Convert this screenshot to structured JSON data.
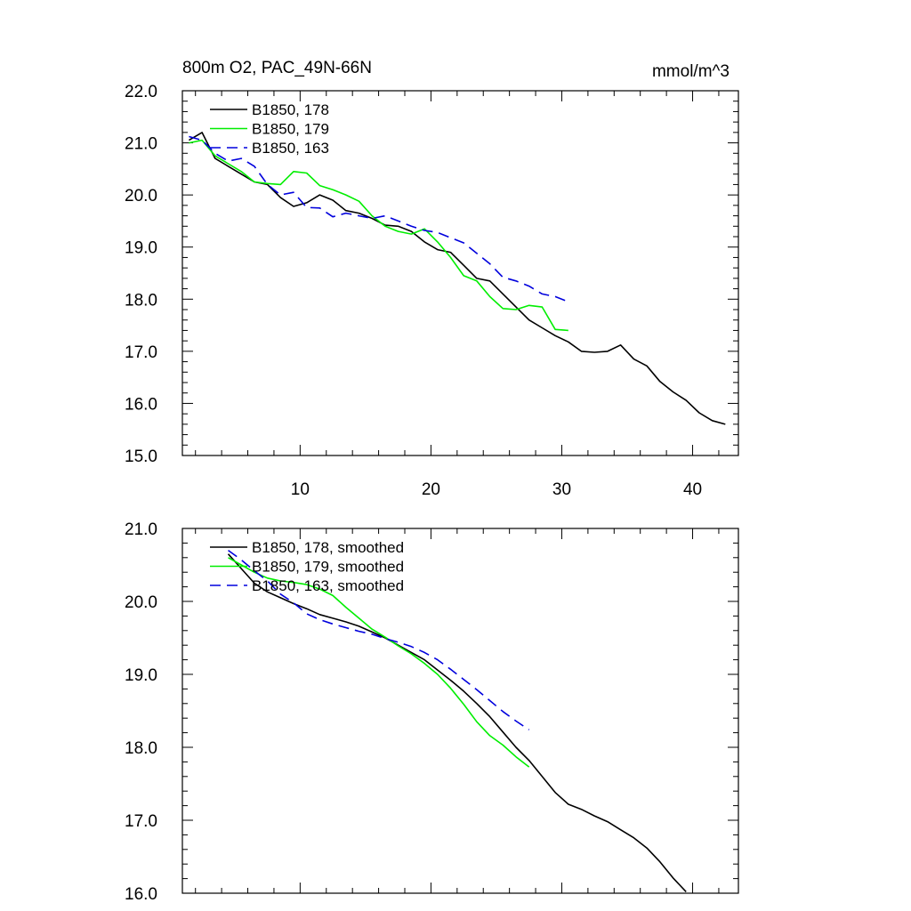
{
  "chart_data": [
    {
      "type": "line",
      "title": "800m O2, PAC_49N-66N",
      "units": "mmol/m^3",
      "xlabel": "",
      "ylabel": "",
      "xlim": [
        1,
        43.5
      ],
      "ylim": [
        15.0,
        22.0
      ],
      "xticks": [
        10,
        20,
        30,
        40
      ],
      "yticks": [
        15.0,
        16.0,
        17.0,
        18.0,
        19.0,
        20.0,
        21.0,
        22.0
      ],
      "ytick_labels": [
        "15.0",
        "16.0",
        "17.0",
        "18.0",
        "19.0",
        "20.0",
        "21.0",
        "22.0"
      ],
      "grid": false,
      "legend": "top-left",
      "series": [
        {
          "name": "B1850, 178",
          "color": "#000000",
          "dash": "solid",
          "x": [
            1.5,
            2.5,
            3.5,
            4.5,
            5.5,
            6.5,
            7.5,
            8.5,
            9.5,
            10.5,
            11.5,
            12.5,
            13.5,
            14.5,
            15.5,
            16.5,
            17.5,
            18.5,
            19.5,
            20.5,
            21.5,
            22.5,
            23.5,
            24.5,
            25.5,
            26.5,
            27.5,
            28.5,
            29.5,
            30.5,
            31.5,
            32.5,
            33.5,
            34.5,
            35.5,
            36.5,
            37.5,
            38.5,
            39.5,
            40.5,
            41.5,
            42.5
          ],
          "y": [
            21.05,
            21.2,
            20.7,
            20.55,
            20.4,
            20.25,
            20.2,
            19.95,
            19.78,
            19.85,
            20.0,
            19.9,
            19.7,
            19.65,
            19.55,
            19.42,
            19.4,
            19.3,
            19.1,
            18.95,
            18.9,
            18.65,
            18.4,
            18.35,
            18.1,
            17.85,
            17.6,
            17.45,
            17.3,
            17.18,
            17.0,
            16.98,
            17.0,
            17.12,
            16.85,
            16.72,
            16.42,
            16.22,
            16.06,
            15.82,
            15.67,
            15.6
          ]
        },
        {
          "name": "B1850, 179",
          "color": "#00ee00",
          "dash": "solid",
          "x": [
            1.5,
            2.5,
            3.5,
            4.5,
            5.5,
            6.5,
            7.5,
            8.5,
            9.5,
            10.5,
            11.5,
            12.5,
            13.5,
            14.5,
            15.5,
            16.5,
            17.5,
            18.5,
            19.5,
            20.5,
            21.5,
            22.5,
            23.5,
            24.5,
            25.5,
            26.5,
            27.5,
            28.5,
            29.5,
            30.5
          ],
          "y": [
            21.0,
            21.05,
            20.75,
            20.6,
            20.45,
            20.25,
            20.22,
            20.2,
            20.45,
            20.42,
            20.18,
            20.1,
            20.0,
            19.88,
            19.6,
            19.4,
            19.3,
            19.25,
            19.35,
            19.1,
            18.8,
            18.45,
            18.35,
            18.05,
            17.82,
            17.8,
            17.88,
            17.85,
            17.42,
            17.4
          ]
        },
        {
          "name": "B1850, 163",
          "color": "#0000dd",
          "dash": "dashed",
          "x": [
            1.5,
            2.5,
            3.5,
            4.5,
            5.5,
            6.5,
            7.5,
            8.5,
            9.5,
            10.5,
            11.5,
            12.5,
            13.5,
            14.5,
            15.5,
            16.5,
            17.5,
            18.5,
            19.5,
            20.5,
            21.5,
            22.5,
            23.5,
            24.5,
            25.5,
            26.5,
            27.5,
            28.5,
            29.5,
            30.5
          ],
          "y": [
            21.12,
            21.05,
            20.8,
            20.65,
            20.7,
            20.55,
            20.2,
            20.0,
            20.05,
            19.76,
            19.75,
            19.58,
            19.65,
            19.6,
            19.55,
            19.6,
            19.5,
            19.4,
            19.32,
            19.28,
            19.18,
            19.08,
            18.88,
            18.68,
            18.42,
            18.35,
            18.25,
            18.1,
            18.05,
            17.95
          ]
        }
      ]
    },
    {
      "type": "line",
      "title": "",
      "xlabel": "",
      "ylabel": "",
      "xlim": [
        1,
        43.5
      ],
      "ylim": [
        16.0,
        21.0
      ],
      "xticks": [
        10,
        20,
        30,
        40
      ],
      "yticks": [
        16.0,
        17.0,
        18.0,
        19.0,
        20.0,
        21.0
      ],
      "ytick_labels": [
        "16.0",
        "17.0",
        "18.0",
        "19.0",
        "20.0",
        "21.0"
      ],
      "grid": false,
      "legend": "top-left",
      "series": [
        {
          "name": "B1850, 178, smoothed",
          "color": "#000000",
          "dash": "solid",
          "x": [
            4.5,
            5.5,
            6.5,
            7.5,
            8.5,
            9.5,
            10.5,
            11.5,
            12.5,
            13.5,
            14.5,
            15.5,
            16.5,
            17.5,
            18.5,
            19.5,
            20.5,
            21.5,
            22.5,
            23.5,
            24.5,
            25.5,
            26.5,
            27.5,
            28.5,
            29.5,
            30.5,
            31.5,
            32.5,
            33.5,
            34.5,
            35.5,
            36.5,
            37.5,
            38.5,
            39.5
          ],
          "y": [
            20.65,
            20.45,
            20.25,
            20.13,
            20.05,
            19.97,
            19.9,
            19.82,
            19.77,
            19.72,
            19.66,
            19.58,
            19.5,
            19.4,
            19.3,
            19.2,
            19.06,
            18.92,
            18.77,
            18.6,
            18.42,
            18.21,
            18.0,
            17.82,
            17.6,
            17.38,
            17.22,
            17.15,
            17.06,
            16.98,
            16.87,
            16.76,
            16.62,
            16.43,
            16.21,
            16.02
          ]
        },
        {
          "name": "B1850, 179, smoothed",
          "color": "#00ee00",
          "dash": "solid",
          "x": [
            4.5,
            5.5,
            6.5,
            7.5,
            8.5,
            9.5,
            10.5,
            11.5,
            12.5,
            13.5,
            14.5,
            15.5,
            16.5,
            17.5,
            18.5,
            19.5,
            20.5,
            21.5,
            22.5,
            23.5,
            24.5,
            25.5,
            26.5,
            27.5
          ],
          "y": [
            20.6,
            20.5,
            20.4,
            20.32,
            20.28,
            20.26,
            20.23,
            20.17,
            20.08,
            19.92,
            19.77,
            19.62,
            19.51,
            19.39,
            19.28,
            19.15,
            19.0,
            18.81,
            18.59,
            18.35,
            18.16,
            18.03,
            17.87,
            17.73
          ]
        },
        {
          "name": "B1850, 163, smoothed",
          "color": "#0000dd",
          "dash": "dashed",
          "x": [
            4.5,
            5.5,
            6.5,
            7.5,
            8.5,
            9.5,
            10.5,
            11.5,
            12.5,
            13.5,
            14.5,
            15.5,
            16.5,
            17.5,
            18.5,
            19.5,
            20.5,
            21.5,
            22.5,
            23.5,
            24.5,
            25.5,
            26.5,
            27.5
          ],
          "y": [
            20.7,
            20.57,
            20.42,
            20.28,
            20.1,
            19.98,
            19.83,
            19.75,
            19.69,
            19.64,
            19.59,
            19.55,
            19.49,
            19.44,
            19.38,
            19.3,
            19.2,
            19.07,
            18.93,
            18.79,
            18.64,
            18.49,
            18.36,
            18.24
          ]
        }
      ]
    }
  ]
}
